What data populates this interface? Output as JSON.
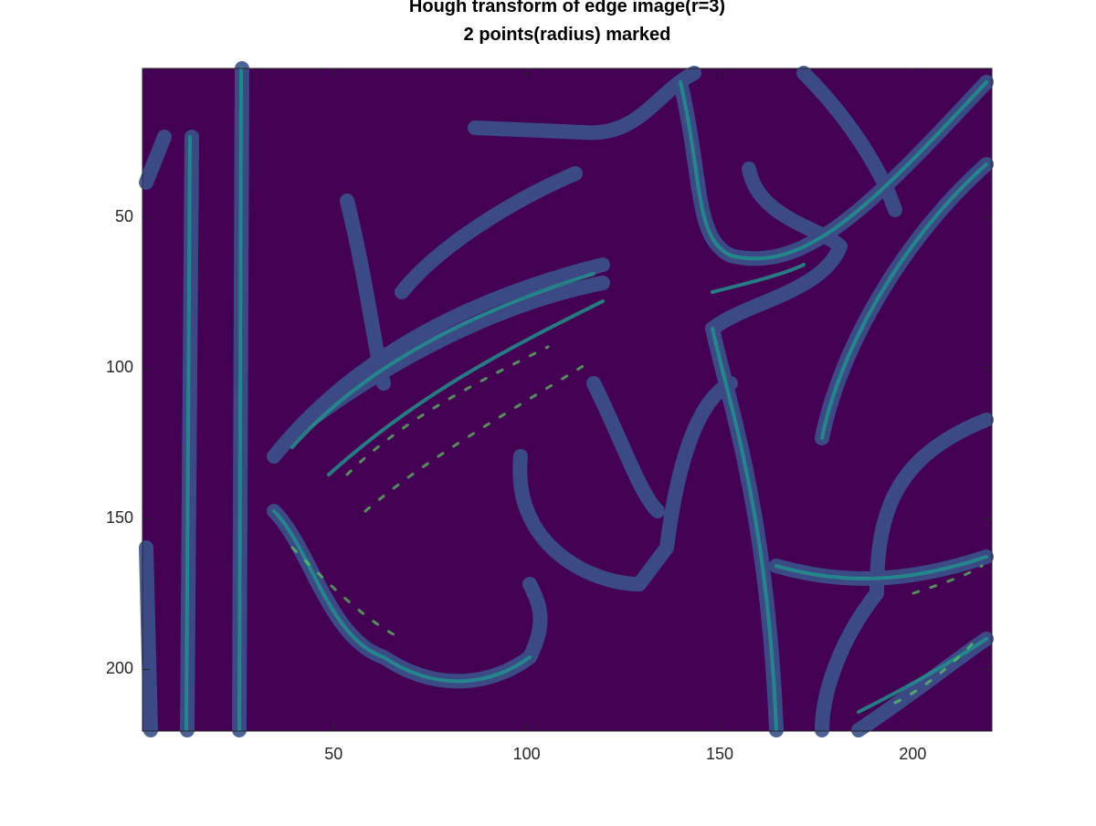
{
  "chart_data": {
    "type": "image",
    "title": "Hough transform of edge image(r=3)",
    "subtitle": "2 points(radius) marked",
    "xlim": [
      0.5,
      220.5
    ],
    "ylim": [
      0.5,
      220.5
    ],
    "y_reversed": true,
    "xticks": [
      50,
      100,
      150,
      200
    ],
    "yticks": [
      50,
      100,
      150,
      200
    ],
    "colormap": "viridis",
    "background_color": "#440154"
  }
}
